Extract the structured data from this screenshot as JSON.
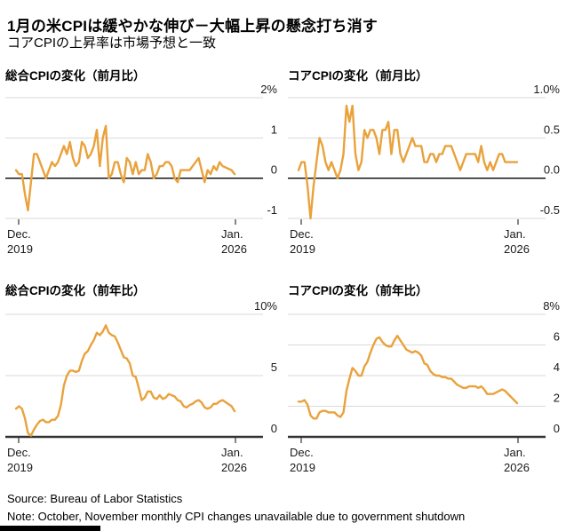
{
  "header": {
    "title": "1月の米CPIは緩やかな伸び－大幅上昇の懸念打ち消す",
    "subtitle": "コアCPIの上昇率は市場予想と一致"
  },
  "footer": {
    "source": "Source: Bureau of Labor Statistics",
    "note": "Note: October, November monthly CPI changes unavailable due to government shutdown"
  },
  "colors": {
    "line": "#E9A23C",
    "grid": "#D9D9D9",
    "zero_line": "#000000",
    "baseline": "#333333",
    "tick": "#333333",
    "text": "#1a1a1a"
  },
  "x_axis": {
    "start_line1": "Dec.",
    "start_line2": "2019",
    "end_line1": "Jan.",
    "end_line2": "2026"
  },
  "chart_data": [
    {
      "type": "line",
      "title": "総合CPIの変化（前月比）",
      "x_range": [
        "Dec. 2019",
        "Jan. 2026"
      ],
      "frequency": "monthly",
      "ylim": [
        -1,
        2
      ],
      "yticks": [
        {
          "label": "2%",
          "value": 2
        },
        {
          "label": "1",
          "value": 1
        },
        {
          "label": "0",
          "value": 0
        },
        {
          "label": "-1",
          "value": -1
        }
      ],
      "emphasis": {
        "zero_line": true,
        "bottom_baseline": false
      },
      "values": [
        0.2,
        0.1,
        0.1,
        -0.4,
        -0.8,
        -0.1,
        0.6,
        0.6,
        0.4,
        0.2,
        0.0,
        0.2,
        0.4,
        0.3,
        0.4,
        0.6,
        0.8,
        0.6,
        0.9,
        0.5,
        0.3,
        0.4,
        0.9,
        0.8,
        0.5,
        0.6,
        0.8,
        1.2,
        0.3,
        1.0,
        1.3,
        0.0,
        0.1,
        0.4,
        0.4,
        0.1,
        -0.1,
        0.5,
        0.4,
        0.1,
        0.4,
        0.1,
        0.2,
        0.2,
        0.6,
        0.4,
        0.0,
        0.1,
        0.3,
        0.3,
        0.4,
        0.4,
        0.3,
        0.0,
        -0.1,
        0.2,
        0.2,
        0.2,
        0.2,
        0.3,
        0.4,
        0.5,
        0.2,
        -0.1,
        0.2,
        0.1,
        0.3,
        0.2,
        0.4,
        0.3,
        null,
        null,
        0.2,
        0.1
      ]
    },
    {
      "type": "line",
      "title": "コアCPIの変化（前月比）",
      "x_range": [
        "Dec. 2019",
        "Jan. 2026"
      ],
      "frequency": "monthly",
      "ylim": [
        -0.5,
        1.0
      ],
      "yticks": [
        {
          "label": "1.0%",
          "value": 1.0
        },
        {
          "label": "0.5",
          "value": 0.5
        },
        {
          "label": "0.0",
          "value": 0.0
        },
        {
          "label": "-0.5",
          "value": -0.5
        }
      ],
      "emphasis": {
        "zero_line": true,
        "bottom_baseline": false
      },
      "values": [
        0.1,
        0.2,
        0.2,
        -0.1,
        -0.5,
        -0.1,
        0.2,
        0.5,
        0.4,
        0.2,
        0.1,
        0.2,
        0.1,
        0.0,
        0.1,
        0.3,
        0.9,
        0.7,
        0.9,
        0.3,
        0.1,
        0.2,
        0.6,
        0.5,
        0.6,
        0.6,
        0.5,
        0.3,
        0.6,
        0.6,
        0.7,
        0.3,
        0.6,
        0.6,
        0.3,
        0.2,
        0.3,
        0.4,
        0.5,
        0.4,
        0.4,
        0.4,
        0.2,
        0.2,
        0.3,
        0.3,
        0.2,
        0.3,
        0.3,
        0.4,
        0.4,
        0.4,
        0.3,
        0.2,
        0.1,
        0.2,
        0.3,
        0.3,
        0.3,
        0.3,
        0.2,
        0.4,
        0.2,
        0.1,
        0.2,
        0.1,
        0.2,
        0.3,
        0.3,
        0.2,
        null,
        null,
        0.2,
        0.2
      ]
    },
    {
      "type": "line",
      "title": "総合CPIの変化（前年比）",
      "x_range": [
        "Dec. 2019",
        "Jan. 2026"
      ],
      "frequency": "monthly",
      "ylim": [
        0,
        10
      ],
      "yticks": [
        {
          "label": "10%",
          "value": 10
        },
        {
          "label": "5",
          "value": 5
        },
        {
          "label": "0",
          "value": 0
        }
      ],
      "emphasis": {
        "zero_line": false,
        "bottom_baseline": true
      },
      "values": [
        2.3,
        2.5,
        2.3,
        1.5,
        0.3,
        0.1,
        0.6,
        1.0,
        1.3,
        1.4,
        1.2,
        1.2,
        1.4,
        1.4,
        1.7,
        2.6,
        4.2,
        5.0,
        5.4,
        5.4,
        5.3,
        5.4,
        6.2,
        6.8,
        7.0,
        7.5,
        7.9,
        8.5,
        8.3,
        8.6,
        9.1,
        8.5,
        8.3,
        8.2,
        7.7,
        7.1,
        6.5,
        6.4,
        6.0,
        5.0,
        4.9,
        4.0,
        3.0,
        3.2,
        3.7,
        3.7,
        3.2,
        3.1,
        3.4,
        3.1,
        3.2,
        3.5,
        3.4,
        3.3,
        3.0,
        2.9,
        2.5,
        2.4,
        2.6,
        2.7,
        2.9,
        3.0,
        2.8,
        2.4,
        2.3,
        2.4,
        2.7,
        2.7,
        2.9,
        3.0,
        null,
        null,
        2.5,
        2.1
      ]
    },
    {
      "type": "line",
      "title": "コアCPIの変化（前年比）",
      "x_range": [
        "Dec. 2019",
        "Jan. 2026"
      ],
      "frequency": "monthly",
      "ylim": [
        0,
        8
      ],
      "yticks": [
        {
          "label": "8%",
          "value": 8
        },
        {
          "label": "6",
          "value": 6
        },
        {
          "label": "4",
          "value": 4
        },
        {
          "label": "2",
          "value": 2
        },
        {
          "label": "0",
          "value": 0
        }
      ],
      "emphasis": {
        "zero_line": false,
        "bottom_baseline": true
      },
      "values": [
        2.3,
        2.3,
        2.4,
        2.1,
        1.4,
        1.2,
        1.2,
        1.6,
        1.7,
        1.7,
        1.6,
        1.6,
        1.6,
        1.4,
        1.3,
        1.6,
        3.0,
        3.8,
        4.5,
        4.3,
        4.0,
        4.0,
        4.6,
        4.9,
        5.5,
        6.0,
        6.4,
        6.5,
        6.2,
        6.0,
        5.9,
        5.9,
        6.3,
        6.6,
        6.3,
        6.0,
        5.7,
        5.6,
        5.5,
        5.6,
        5.5,
        5.3,
        4.8,
        4.7,
        4.3,
        4.1,
        4.0,
        4.0,
        3.9,
        3.9,
        3.8,
        3.8,
        3.6,
        3.4,
        3.3,
        3.2,
        3.2,
        3.3,
        3.3,
        3.3,
        3.2,
        3.3,
        3.1,
        2.8,
        2.8,
        2.8,
        2.9,
        3.0,
        3.1,
        3.0,
        null,
        null,
        2.4,
        2.2
      ]
    }
  ]
}
